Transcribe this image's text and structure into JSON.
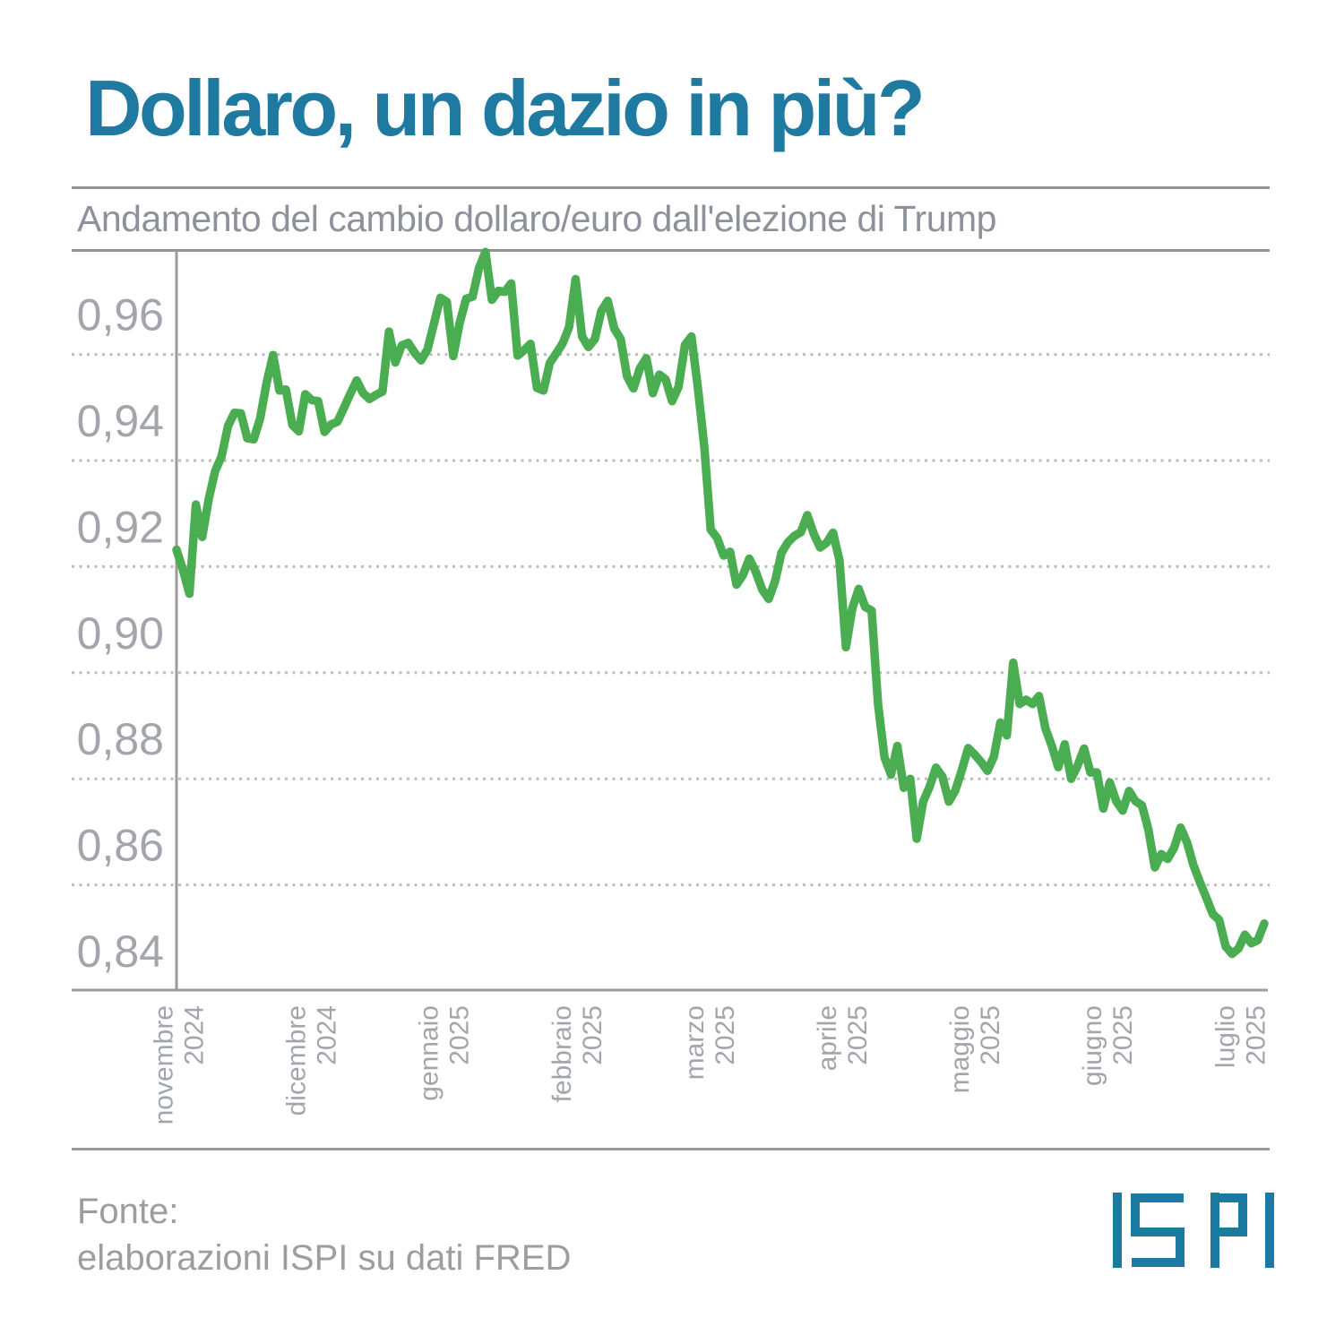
{
  "header": {
    "title": "Dollaro, un dazio in più?",
    "subtitle": "Andamento del cambio dollaro/euro dall'elezione di Trump"
  },
  "footer": {
    "source_label": "Fonte:",
    "source_detail": "elaborazioni ISPI su dati FRED",
    "logo_name": "ISPI"
  },
  "colors": {
    "title": "#1f7aa2",
    "subtitle": "#8d929a",
    "line": "#4bad51",
    "grid_dots": "#bdbdbd",
    "axis": "#9b9b9b",
    "axis_labels": "#a2a6ac",
    "separators": "#8f9296",
    "footer_text": "#9d9d9d",
    "logo": "#1b7aa0",
    "background": "#ffffff"
  },
  "chart_data": {
    "type": "line",
    "title": "Andamento del cambio dollaro/euro dall'elezione di Trump",
    "xlabel": "",
    "ylabel": "",
    "ylim": [
      0.84,
      0.98
    ],
    "grid": "horizontal-dotted",
    "legend": "none",
    "y_ticks": {
      "values": [
        0.96,
        0.94,
        0.92,
        0.9,
        0.88,
        0.86,
        0.84
      ],
      "labels": [
        "0,96",
        "0,94",
        "0,92",
        "0,90",
        "0,88",
        "0,86",
        "0,84"
      ]
    },
    "x_ticks": [
      {
        "month": "novembre",
        "year": "2024"
      },
      {
        "month": "dicembre",
        "year": "2024"
      },
      {
        "month": "gennaio",
        "year": "2025"
      },
      {
        "month": "febbraio",
        "year": "2025"
      },
      {
        "month": "marzo",
        "year": "2025"
      },
      {
        "month": "aprile",
        "year": "2025"
      },
      {
        "month": "maggio",
        "year": "2025"
      },
      {
        "month": "giugno",
        "year": "2025"
      },
      {
        "month": "luglio",
        "year": "2025"
      }
    ],
    "series": [
      {
        "name": "cambio dollaro/euro (euro per 1 dollaro)",
        "color": "#4bad51",
        "dates": [
          "2024-11-01",
          "2024-11-04",
          "2024-11-05",
          "2024-11-06",
          "2024-11-07",
          "2024-11-08",
          "2024-11-11",
          "2024-11-12",
          "2024-11-13",
          "2024-11-14",
          "2024-11-15",
          "2024-11-18",
          "2024-11-19",
          "2024-11-20",
          "2024-11-21",
          "2024-11-22",
          "2024-11-25",
          "2024-11-26",
          "2024-11-27",
          "2024-11-29",
          "2024-12-02",
          "2024-12-03",
          "2024-12-04",
          "2024-12-05",
          "2024-12-06",
          "2024-12-09",
          "2024-12-10",
          "2024-12-11",
          "2024-12-12",
          "2024-12-13",
          "2024-12-16",
          "2024-12-17",
          "2024-12-18",
          "2024-12-19",
          "2024-12-20",
          "2024-12-23",
          "2024-12-24",
          "2024-12-26",
          "2024-12-27",
          "2024-12-30",
          "2024-12-31",
          "2025-01-02",
          "2025-01-03",
          "2025-01-06",
          "2025-01-07",
          "2025-01-08",
          "2025-01-09",
          "2025-01-10",
          "2025-01-13",
          "2025-01-14",
          "2025-01-15",
          "2025-01-16",
          "2025-01-17",
          "2025-01-21",
          "2025-01-22",
          "2025-01-23",
          "2025-01-24",
          "2025-01-27",
          "2025-01-28",
          "2025-01-29",
          "2025-01-30",
          "2025-01-31",
          "2025-02-03",
          "2025-02-04",
          "2025-02-05",
          "2025-02-06",
          "2025-02-07",
          "2025-02-10",
          "2025-02-11",
          "2025-02-12",
          "2025-02-13",
          "2025-02-14",
          "2025-02-18",
          "2025-02-19",
          "2025-02-20",
          "2025-02-21",
          "2025-02-24",
          "2025-02-25",
          "2025-02-26",
          "2025-02-27",
          "2025-02-28",
          "2025-03-03",
          "2025-03-04",
          "2025-03-05",
          "2025-03-06",
          "2025-03-07",
          "2025-03-10",
          "2025-03-11",
          "2025-03-12",
          "2025-03-13",
          "2025-03-14",
          "2025-03-17",
          "2025-03-18",
          "2025-03-19",
          "2025-03-20",
          "2025-03-21",
          "2025-03-24",
          "2025-03-25",
          "2025-03-26",
          "2025-03-27",
          "2025-03-28",
          "2025-03-31",
          "2025-04-01",
          "2025-04-02",
          "2025-04-03",
          "2025-04-04",
          "2025-04-07",
          "2025-04-08",
          "2025-04-09",
          "2025-04-10",
          "2025-04-11",
          "2025-04-14",
          "2025-04-15",
          "2025-04-16",
          "2025-04-17",
          "2025-04-21",
          "2025-04-22",
          "2025-04-23",
          "2025-04-24",
          "2025-04-25",
          "2025-04-28",
          "2025-04-29",
          "2025-04-30",
          "2025-05-01",
          "2025-05-02",
          "2025-05-05",
          "2025-05-06",
          "2025-05-07",
          "2025-05-08",
          "2025-05-09",
          "2025-05-12",
          "2025-05-13",
          "2025-05-14",
          "2025-05-15",
          "2025-05-16",
          "2025-05-19",
          "2025-05-20",
          "2025-05-21",
          "2025-05-22",
          "2025-05-23",
          "2025-05-27",
          "2025-05-28",
          "2025-05-29",
          "2025-05-30",
          "2025-06-02",
          "2025-06-03",
          "2025-06-04",
          "2025-06-05",
          "2025-06-06",
          "2025-06-09",
          "2025-06-10",
          "2025-06-11",
          "2025-06-12",
          "2025-06-13",
          "2025-06-16",
          "2025-06-17",
          "2025-06-18",
          "2025-06-20",
          "2025-06-23",
          "2025-06-24",
          "2025-06-25",
          "2025-06-26",
          "2025-06-27",
          "2025-06-30",
          "2025-07-01",
          "2025-07-02",
          "2025-07-03",
          "2025-07-07",
          "2025-07-08",
          "2025-07-09"
        ],
        "values": [
          0.9232,
          0.9194,
          0.9149,
          0.9317,
          0.9256,
          0.9327,
          0.938,
          0.9408,
          0.9465,
          0.949,
          0.9489,
          0.9442,
          0.944,
          0.948,
          0.9547,
          0.9599,
          0.9532,
          0.9534,
          0.9467,
          0.9455,
          0.9525,
          0.9514,
          0.9512,
          0.9454,
          0.9468,
          0.9473,
          0.9499,
          0.9526,
          0.9551,
          0.9527,
          0.9516,
          0.9524,
          0.953,
          0.9643,
          0.9585,
          0.9617,
          0.9622,
          0.9603,
          0.9589,
          0.961,
          0.9658,
          0.9707,
          0.9699,
          0.9597,
          0.966,
          0.9705,
          0.9709,
          0.9763,
          0.9793,
          0.9703,
          0.972,
          0.9718,
          0.9734,
          0.9598,
          0.9608,
          0.962,
          0.9537,
          0.9532,
          0.9584,
          0.9602,
          0.9621,
          0.9652,
          0.9742,
          0.9634,
          0.9614,
          0.9629,
          0.9682,
          0.9701,
          0.9649,
          0.9629,
          0.9559,
          0.9536,
          0.9574,
          0.9593,
          0.9527,
          0.9562,
          0.9553,
          0.9512,
          0.9539,
          0.9618,
          0.9634,
          0.9537,
          0.9427,
          0.927,
          0.9254,
          0.9221,
          0.9228,
          0.9166,
          0.9184,
          0.9215,
          0.919,
          0.9157,
          0.9139,
          0.9173,
          0.9226,
          0.9246,
          0.9258,
          0.9265,
          0.9297,
          0.9262,
          0.9236,
          0.9245,
          0.9264,
          0.9212,
          0.9048,
          0.9122,
          0.9158,
          0.9124,
          0.9117,
          0.894,
          0.884,
          0.8808,
          0.8862,
          0.8783,
          0.88,
          0.8687,
          0.8757,
          0.8785,
          0.8821,
          0.8804,
          0.8757,
          0.8778,
          0.8816,
          0.8858,
          0.8846,
          0.8832,
          0.8815,
          0.8842,
          0.8906,
          0.8882,
          0.9019,
          0.8941,
          0.8949,
          0.8941,
          0.8956,
          0.8895,
          0.8862,
          0.8822,
          0.8865,
          0.88,
          0.8825,
          0.8857,
          0.8812,
          0.8812,
          0.8744,
          0.8793,
          0.8758,
          0.874,
          0.8777,
          0.8758,
          0.875,
          0.8704,
          0.8633,
          0.8658,
          0.8649,
          0.867,
          0.8708,
          0.868,
          0.8637,
          0.8605,
          0.8576,
          0.8545,
          0.8534,
          0.8484,
          0.847,
          0.848,
          0.8506,
          0.849,
          0.8496,
          0.8527
        ]
      }
    ]
  }
}
